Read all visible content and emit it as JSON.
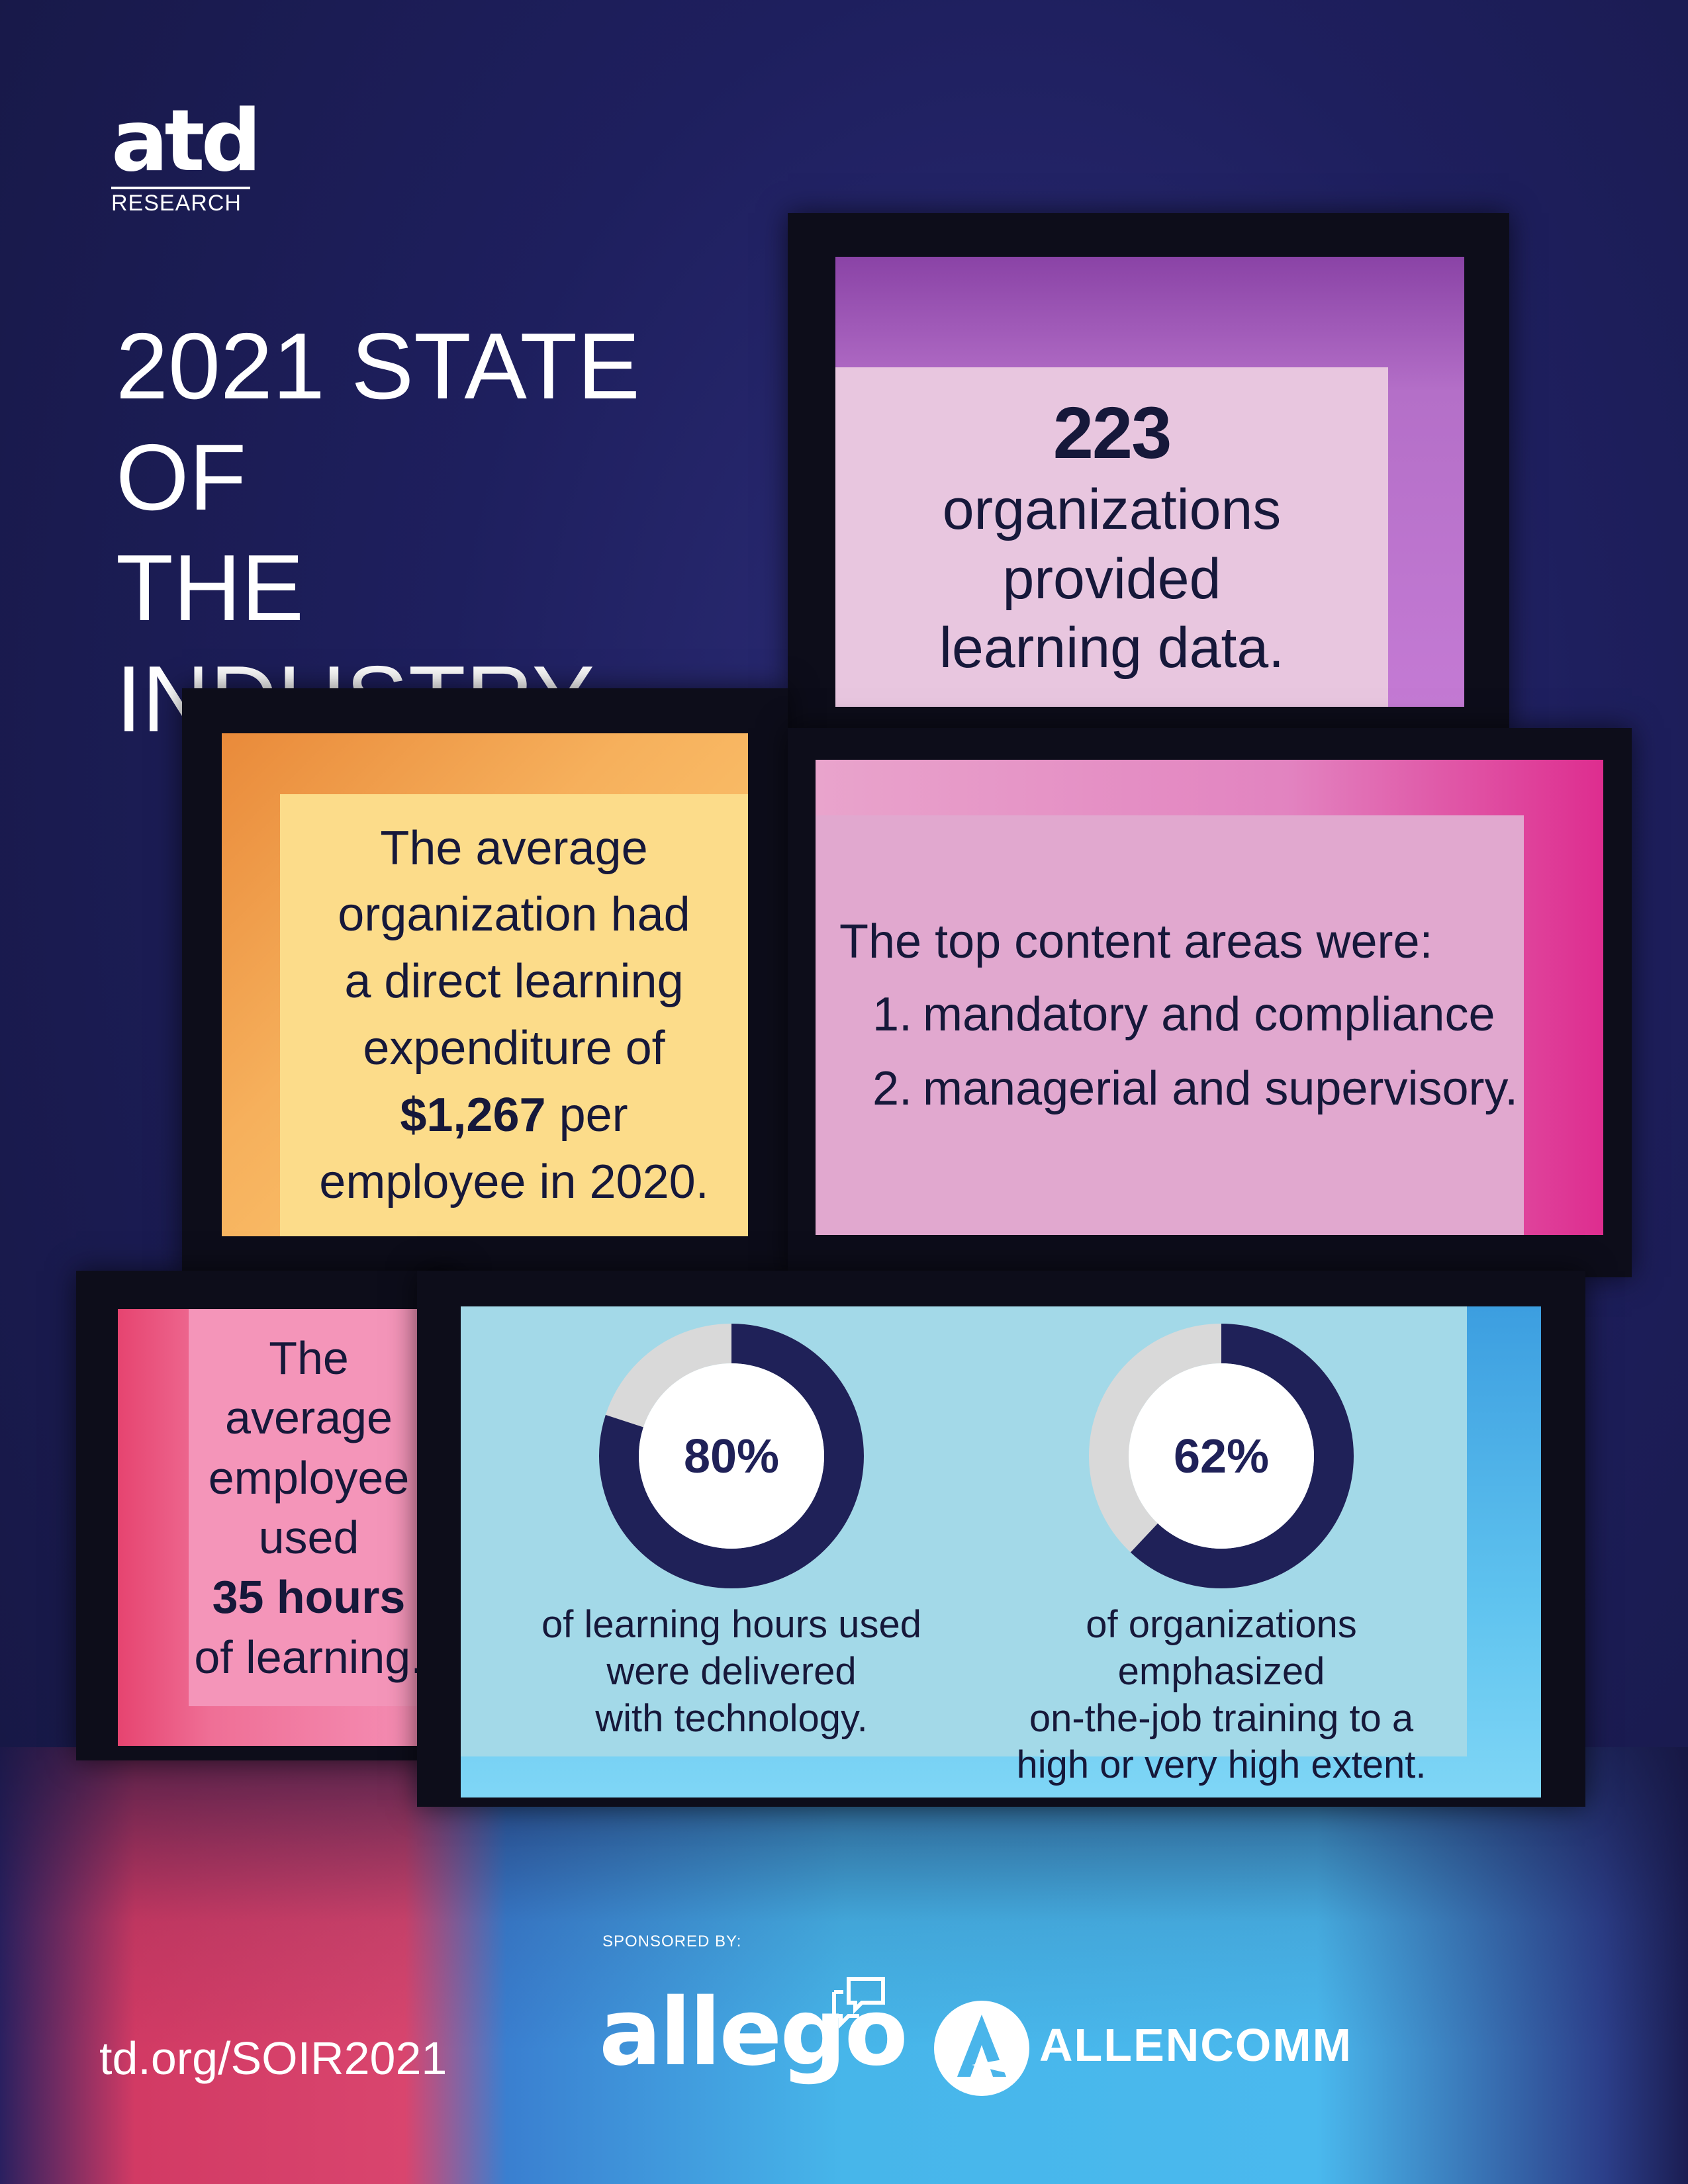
{
  "logo": {
    "brand": "atd",
    "subtitle": "RESEARCH"
  },
  "title": {
    "line1": "2021 STATE OF",
    "line2": "THE INDUSTRY"
  },
  "box_organizations": {
    "stat": "223",
    "line1": "organizations",
    "line2": "provided",
    "line3": "learning data."
  },
  "box_expenditure": {
    "line1": "The average",
    "line2": "organization had",
    "line3": "a direct learning",
    "line4": "expenditure of",
    "amount": "$1,267",
    "line5_suffix": " per",
    "line6": "employee in 2020."
  },
  "box_content_areas": {
    "heading": "The top content areas were:",
    "items": [
      {
        "num": "1.",
        "text": "mandatory and compliance"
      },
      {
        "num": "2.",
        "text": "managerial and supervisory."
      }
    ]
  },
  "box_hours": {
    "line1": "The",
    "line2": "average",
    "line3": "employee",
    "line4": "used",
    "amount": "35 hours",
    "line5": "of learning."
  },
  "donuts": [
    {
      "label": "80%",
      "percent": 80,
      "caption1": "of learning hours used",
      "caption2": "were delivered",
      "caption3": "with technology."
    },
    {
      "label": "62%",
      "percent": 62,
      "caption1": "of organizations emphasized",
      "caption2": "on-the-job training to a",
      "caption3": "high or very high extent."
    }
  ],
  "colors": {
    "donut_fill": "#1f2158",
    "donut_track": "#d9d9d9",
    "donut_center": "#ffffff"
  },
  "footer": {
    "url": "td.org/SOIR2021",
    "sponsored_by": "SPONSORED BY:",
    "sponsor1": "allego",
    "sponsor2": "ALLENCOMM"
  }
}
